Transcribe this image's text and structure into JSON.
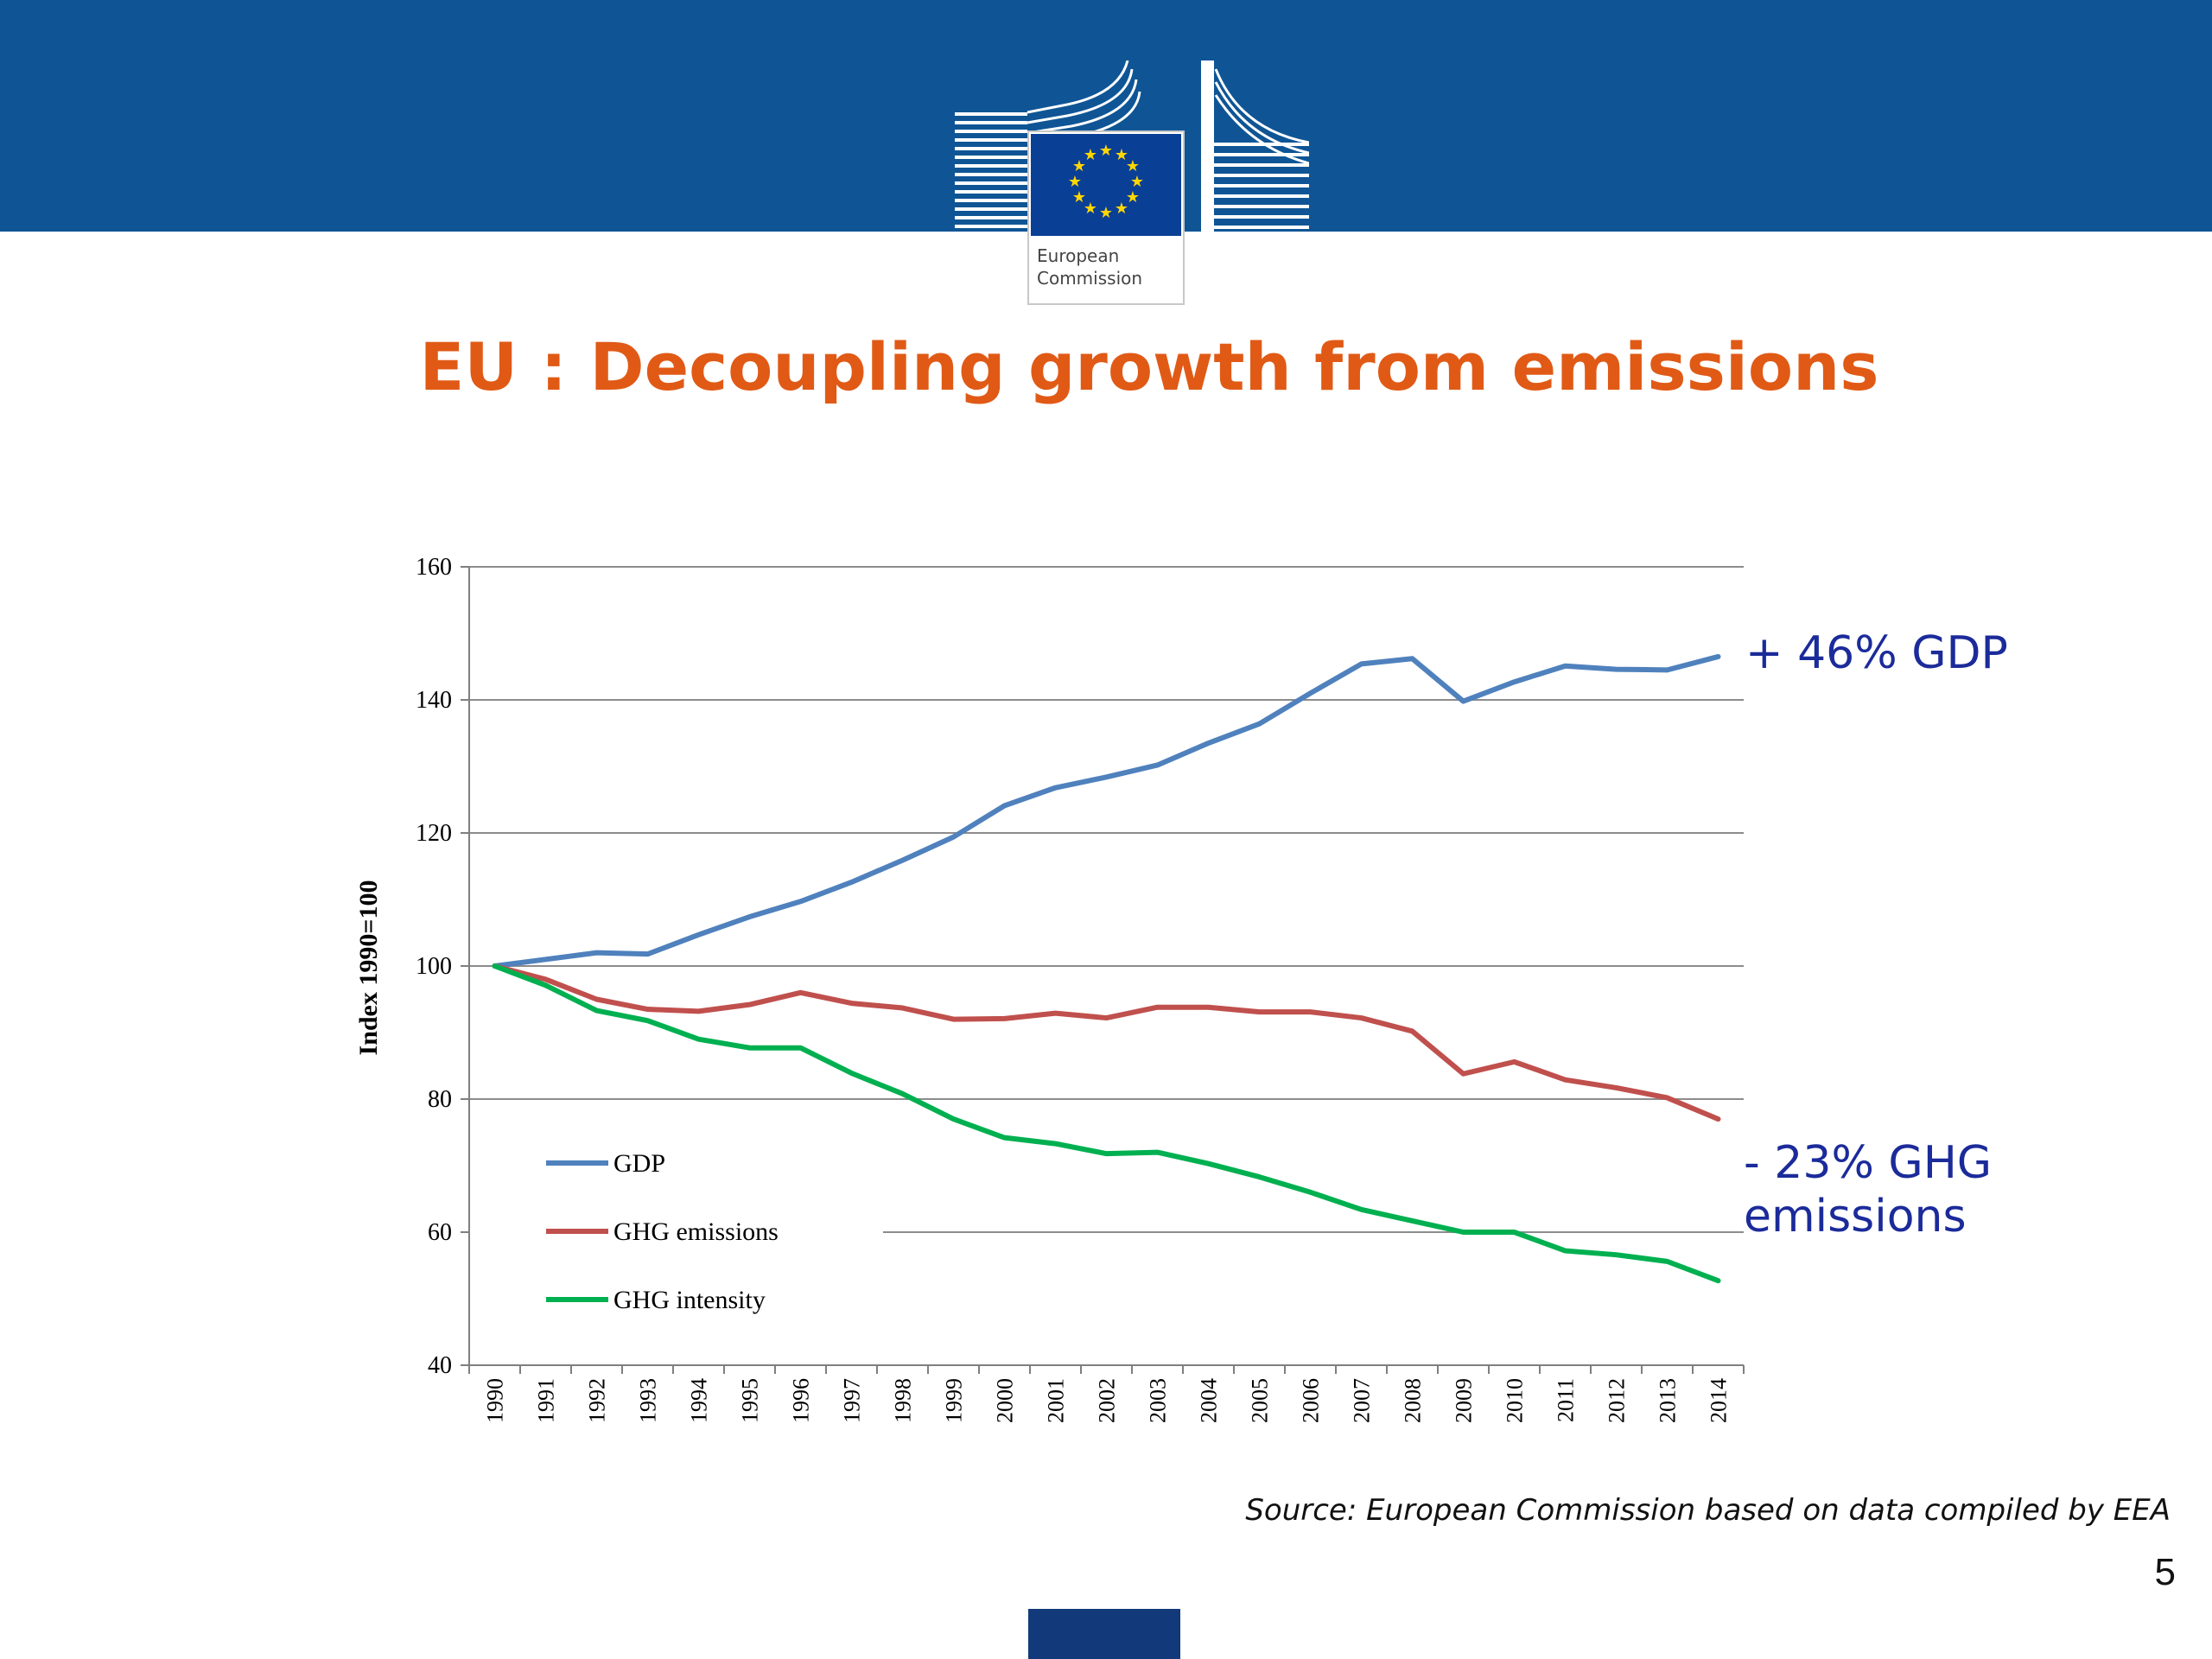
{
  "header": {
    "logo_text_line1": "European",
    "logo_text_line2": "Commission",
    "brand_blue": "#0f5595"
  },
  "title": "EU : Decoupling growth from emissions",
  "annotations": {
    "gdp": "+ 46% GDP",
    "ghg_line1": "- 23% GHG",
    "ghg_line2": "emissions"
  },
  "source": "Source: European Commission based on data compiled by EEA",
  "page_number": "5",
  "chart_data": {
    "type": "line",
    "ylabel": "Index 1990=100",
    "xlabel": "",
    "ylim": [
      40,
      160
    ],
    "yticks": [
      40,
      60,
      80,
      100,
      120,
      140,
      160
    ],
    "grid": true,
    "legend_position": "bottom-left",
    "categories": [
      "1990",
      "1991",
      "1992",
      "1993",
      "1994",
      "1995",
      "1996",
      "1997",
      "1998",
      "1999",
      "2000",
      "2001",
      "2002",
      "2003",
      "2004",
      "2005",
      "2006",
      "2007",
      "2008",
      "2009",
      "2010",
      "2011",
      "2012",
      "2013",
      "2014"
    ],
    "series": [
      {
        "name": "GDP",
        "color": "#4f81bd",
        "values": [
          100,
          101,
          102,
          101.8,
          104.7,
          107.4,
          109.7,
          112.6,
          115.9,
          119.4,
          124.1,
          126.8,
          128.4,
          130.2,
          133.5,
          136.4,
          141,
          145.4,
          146.2,
          139.8,
          142.7,
          145.1,
          144.6,
          144.5,
          146.5
        ]
      },
      {
        "name": "GHG emissions",
        "color": "#c0504d",
        "values": [
          100,
          98,
          95,
          93.5,
          93.2,
          94.2,
          96,
          94.4,
          93.7,
          92,
          92.1,
          92.9,
          92.2,
          93.8,
          93.8,
          93.1,
          93.1,
          92.2,
          90.2,
          83.8,
          85.6,
          82.9,
          81.7,
          80.2,
          77
        ]
      },
      {
        "name": "GHG intensity",
        "color": "#00b050",
        "values": [
          100,
          97.1,
          93.3,
          91.8,
          89,
          87.7,
          87.7,
          83.9,
          80.8,
          77,
          74.2,
          73.3,
          71.8,
          72,
          70.3,
          68.3,
          66,
          63.4,
          61.7,
          60,
          60,
          57.2,
          56.6,
          55.6,
          52.7
        ]
      }
    ]
  }
}
